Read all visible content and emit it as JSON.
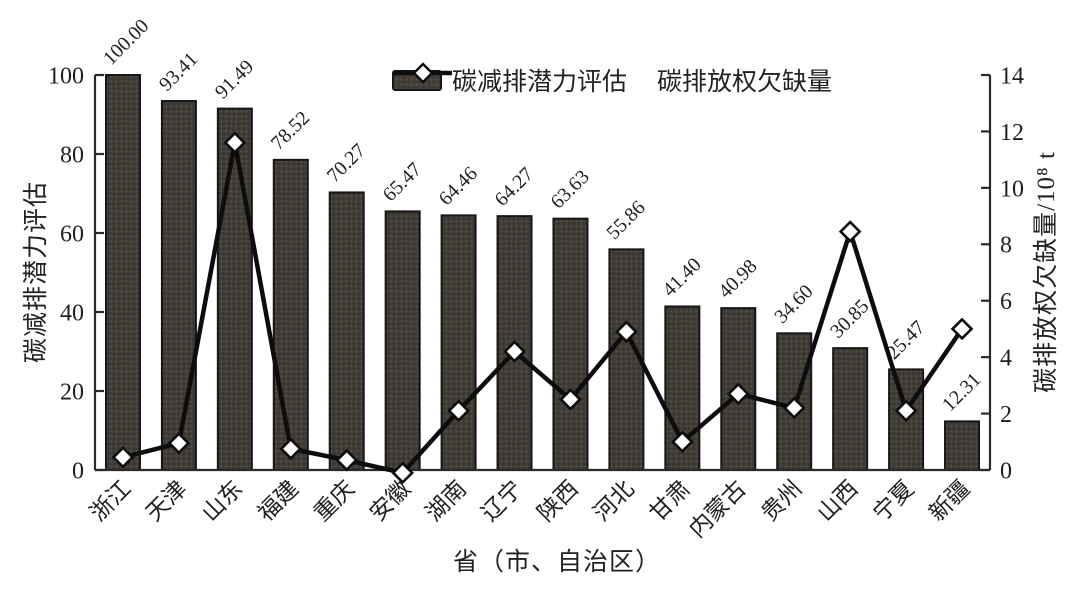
{
  "chart_data": {
    "type": "bar+line combo",
    "categories": [
      "浙江",
      "天津",
      "山东",
      "福建",
      "重庆",
      "安徽",
      "湖南",
      "辽宁",
      "陕西",
      "河北",
      "甘肃",
      "内蒙古",
      "贵州",
      "山西",
      "宁夏",
      "新疆"
    ],
    "series": [
      {
        "name": "碳减排潜力评估",
        "type": "bar",
        "axis": "left",
        "values": [
          100.0,
          93.41,
          91.49,
          78.52,
          70.27,
          65.47,
          64.46,
          64.27,
          63.63,
          55.86,
          41.4,
          40.98,
          34.6,
          30.85,
          25.47,
          12.31
        ],
        "labels": [
          "100.00",
          "93.41",
          "91.49",
          "78.52",
          "70.27",
          "65.47",
          "64.46",
          "64.27",
          "63.63",
          "55.86",
          "41.40",
          "40.98",
          "34.60",
          "30.85",
          "25.47",
          "12.31"
        ]
      },
      {
        "name": "碳排放权欠缺量",
        "type": "line",
        "axis": "right",
        "values": [
          0.45,
          0.95,
          11.6,
          0.75,
          0.35,
          -0.1,
          2.1,
          4.2,
          2.5,
          4.9,
          1.0,
          2.7,
          2.2,
          8.45,
          2.1,
          5.0
        ]
      }
    ],
    "left_axis": {
      "label": "碳减排潜力评估",
      "ticks": [
        0,
        20,
        40,
        60,
        80,
        100
      ],
      "range": [
        0,
        100
      ]
    },
    "right_axis": {
      "label": "碳排放权欠缺量/10⁸ t",
      "ticks": [
        0,
        2,
        4,
        6,
        8,
        10,
        12,
        14
      ],
      "range": [
        0,
        14
      ]
    },
    "x_axis": {
      "label": "省（市、自治区）"
    },
    "legend": [
      {
        "label": "碳减排潜力评估",
        "swatch": "bar"
      },
      {
        "label": "碳排放权欠缺量",
        "swatch": "line-diamond"
      }
    ],
    "grid": false,
    "legend_position": "top-center",
    "colors": {
      "bar_fill": "#423c37",
      "bar_dot": "#5a524b",
      "bar_border": "#161616",
      "line": "#0d0d0d",
      "marker_fill": "#ffffff",
      "marker_stroke": "#0d0d0d",
      "axis": "#2a2a2a",
      "text": "#1f1f1f"
    }
  }
}
